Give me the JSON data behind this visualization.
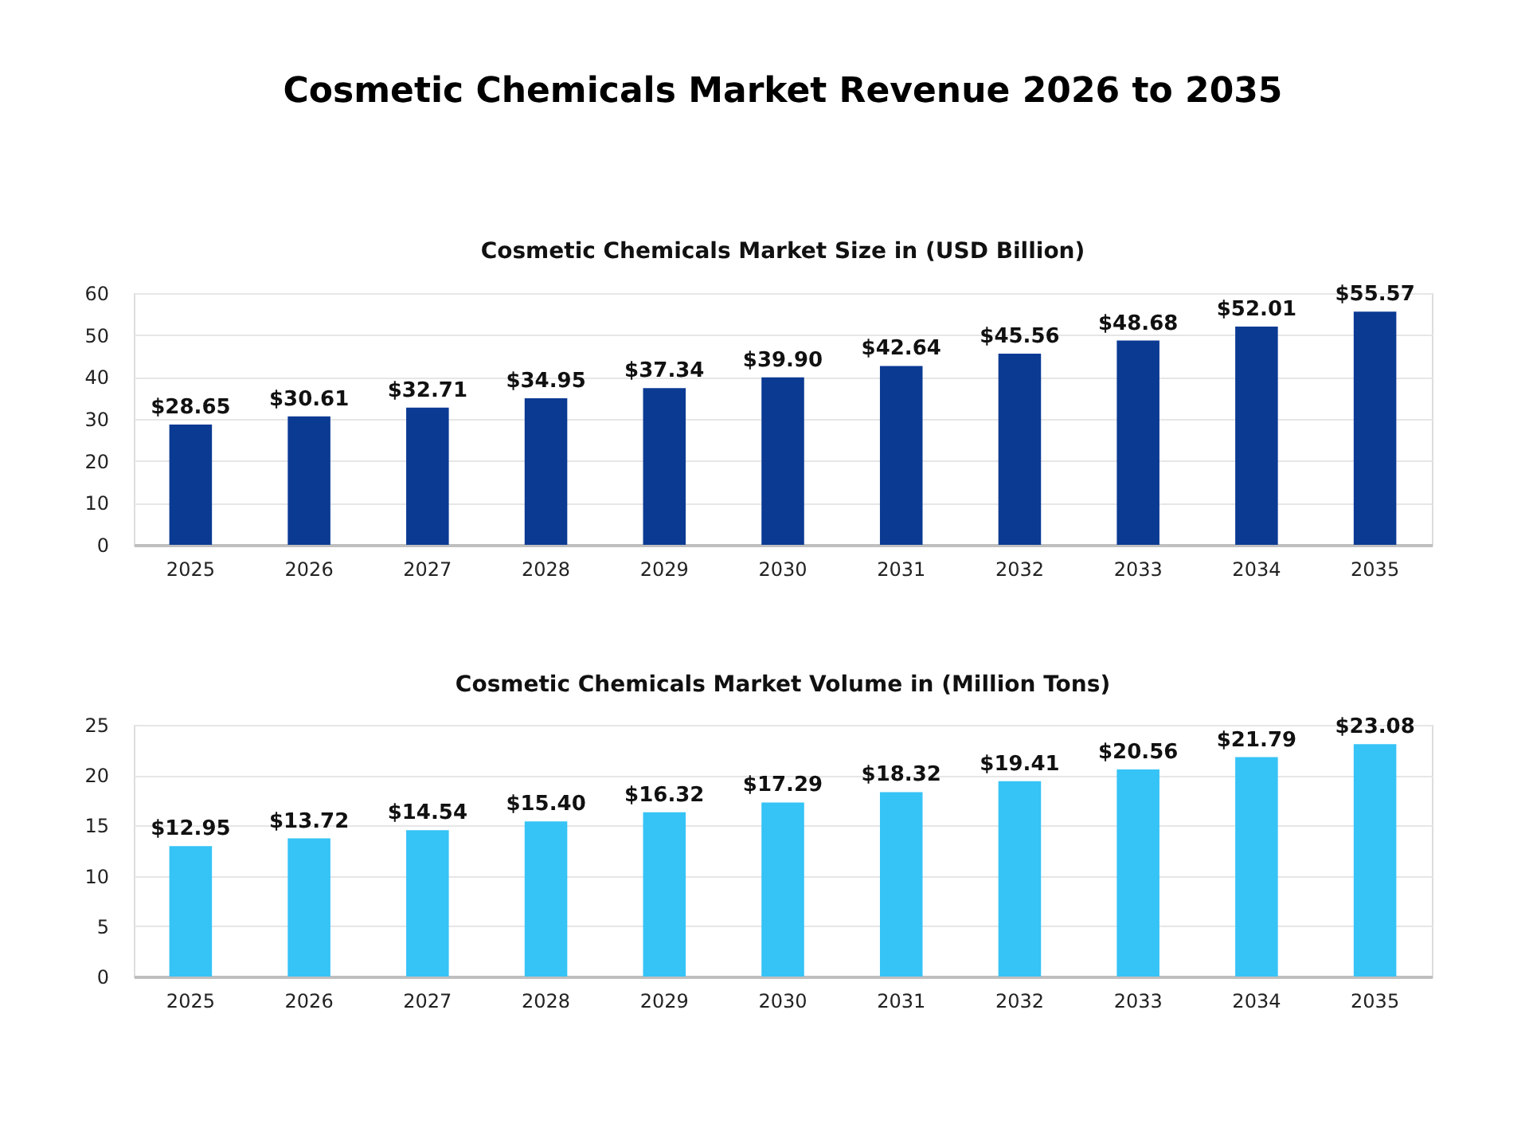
{
  "chart_data": [
    {
      "type": "bar",
      "title": "Cosmetic Chemicals Market Revenue 2026 to 2035",
      "subtitle": "Cosmetic Chemicals Market Size in (USD Billion)",
      "categories": [
        "2025",
        "2026",
        "2027",
        "2028",
        "2029",
        "2030",
        "2031",
        "2032",
        "2033",
        "2034",
        "2035"
      ],
      "values": [
        28.65,
        30.61,
        32.71,
        34.95,
        37.34,
        39.9,
        42.64,
        45.56,
        48.68,
        52.01,
        55.57
      ],
      "value_labels": [
        "$28.65",
        "$30.61",
        "$32.71",
        "$34.95",
        "$37.34",
        "$39.90",
        "$42.64",
        "$45.56",
        "$48.68",
        "$52.01",
        "$55.57"
      ],
      "color": "#0b3a93",
      "ylim": [
        0,
        60
      ],
      "yticks": [
        0,
        10,
        20,
        30,
        40,
        50,
        60
      ],
      "grid": "y"
    },
    {
      "type": "bar",
      "title": "Cosmetic Chemicals Market Volume in (Million Tons)",
      "categories": [
        "2025",
        "2026",
        "2027",
        "2028",
        "2029",
        "2030",
        "2031",
        "2032",
        "2033",
        "2034",
        "2035"
      ],
      "values": [
        12.95,
        13.72,
        14.54,
        15.4,
        16.32,
        17.29,
        18.32,
        19.41,
        20.56,
        21.79,
        23.08
      ],
      "value_labels": [
        "$12.95",
        "$13.72",
        "$14.54",
        "$15.40",
        "$16.32",
        "$17.29",
        "$18.32",
        "$19.41",
        "$20.56",
        "$21.79",
        "$23.08"
      ],
      "color": "#36c3f6",
      "ylim": [
        0,
        25
      ],
      "yticks": [
        0,
        5,
        10,
        15,
        20,
        25
      ],
      "grid": "y"
    }
  ]
}
